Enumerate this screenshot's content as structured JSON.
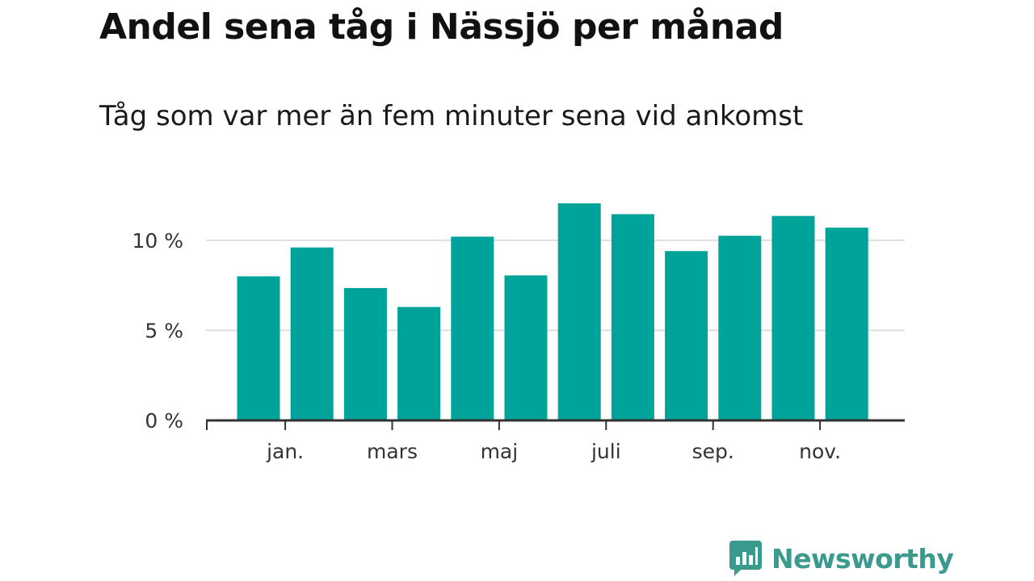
{
  "header": {
    "title": "Andel sena tåg i Nässjö per månad",
    "subtitle": "Tåg som var mer än fem minuter sena vid ankomst"
  },
  "chart_data": {
    "type": "bar",
    "title": "Andel sena tåg i Nässjö per månad",
    "subtitle": "Tåg som var mer än fem minuter sena vid ankomst",
    "xlabel": "",
    "ylabel": "",
    "y_unit": "%",
    "ylim": [
      0,
      12
    ],
    "y_ticks": [
      0,
      5,
      10
    ],
    "y_tick_labels": [
      "0 %",
      "5 %",
      "10 %"
    ],
    "x_tick_labels": [
      "jan.",
      "mars",
      "maj",
      "juli",
      "sep.",
      "nov."
    ],
    "x_tick_positions": [
      1,
      3,
      5,
      7,
      9,
      11
    ],
    "values": [
      8.0,
      9.6,
      7.35,
      6.3,
      10.2,
      8.05,
      12.05,
      11.45,
      9.4,
      10.25,
      11.35,
      10.7
    ],
    "grid": true,
    "legend": "none",
    "bar_color": "#00a399"
  },
  "brand": {
    "name": "Newsworthy",
    "color": "#3a9a8e",
    "icon": "bar-chart-speech-bubble-icon"
  }
}
